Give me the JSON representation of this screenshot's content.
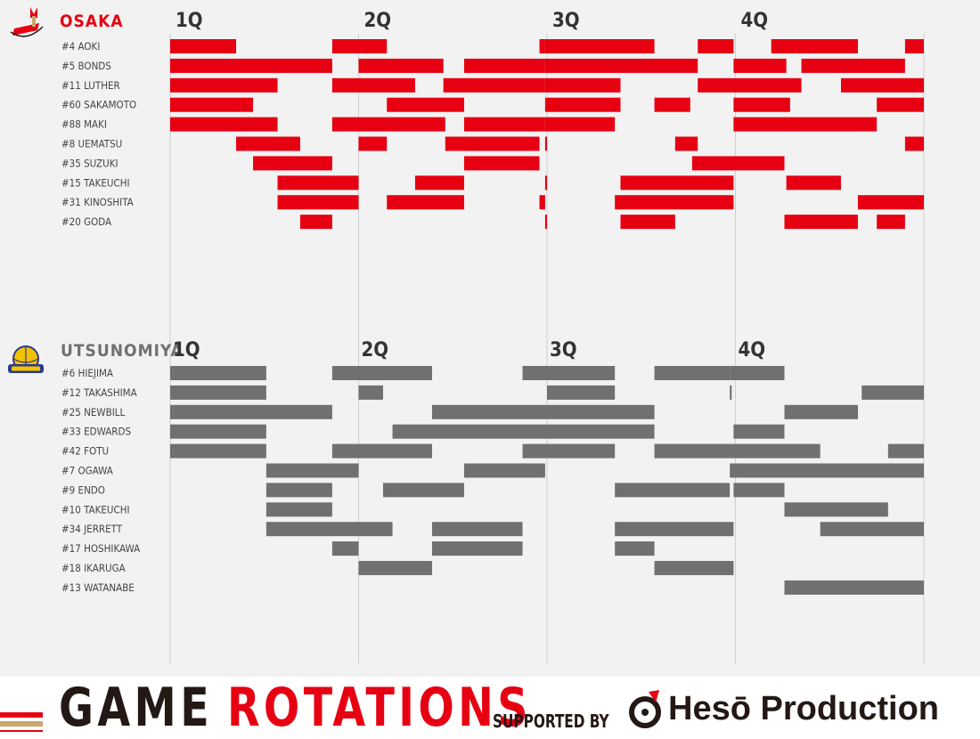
{
  "chart_data": {
    "type": "rotation_timeline",
    "title": "GAME ROTATIONS",
    "periods": [
      "1Q",
      "2Q",
      "3Q",
      "4Q"
    ],
    "game_length_min": 40,
    "x_unit": "game minutes",
    "teams": [
      {
        "name": "OSAKA",
        "color": "#e60012",
        "name_color": "#e60012",
        "logo_icon": "osaka-evessa-logo-icon",
        "players": [
          {
            "label": "#4 AOKI",
            "stints": [
              [
                0,
                3.5
              ],
              [
                8.6,
                11.5
              ],
              [
                19.6,
                19.9
              ],
              [
                19.9,
                25.7
              ],
              [
                28,
                29.9
              ],
              [
                31.9,
                36.5
              ],
              [
                39,
                40
              ]
            ]
          },
          {
            "label": "#5 BONDS",
            "stints": [
              [
                0,
                8.6
              ],
              [
                10,
                14.5
              ],
              [
                15.6,
                19.9
              ],
              [
                19.9,
                28
              ],
              [
                29.9,
                32.7
              ],
              [
                33.5,
                39
              ]
            ]
          },
          {
            "label": "#11 LUTHER",
            "stints": [
              [
                0,
                5.7
              ],
              [
                8.6,
                13
              ],
              [
                14.5,
                19.9
              ],
              [
                19.9,
                23.9
              ],
              [
                28,
                33.5
              ],
              [
                35.6,
                40
              ]
            ]
          },
          {
            "label": "#60 SAKAMOTO",
            "stints": [
              [
                0,
                4.4
              ],
              [
                11.5,
                15.6
              ],
              [
                19.9,
                23.9
              ],
              [
                25.7,
                27.6
              ],
              [
                29.9,
                32.9
              ],
              [
                37.5,
                40
              ]
            ]
          },
          {
            "label": "#88 MAKI",
            "stints": [
              [
                0,
                5.7
              ],
              [
                8.6,
                14.6
              ],
              [
                15.6,
                19.9
              ],
              [
                19.9,
                23.6
              ],
              [
                29.9,
                37.5
              ]
            ]
          },
          {
            "label": "#8 UEMATSU",
            "stints": [
              [
                3.5,
                6.9
              ],
              [
                10,
                11.5
              ],
              [
                14.6,
                19.6
              ],
              [
                19.9,
                20
              ],
              [
                26.8,
                28
              ],
              [
                39,
                40
              ]
            ]
          },
          {
            "label": "#35 SUZUKI",
            "stints": [
              [
                4.4,
                8.6
              ],
              [
                15.6,
                19.6
              ],
              [
                27.7,
                32.6
              ]
            ]
          },
          {
            "label": "#15 TAKEUCHI",
            "stints": [
              [
                5.7,
                10
              ],
              [
                13,
                15.6
              ],
              [
                19.9,
                20
              ],
              [
                23.9,
                29.9
              ],
              [
                32.7,
                35.6
              ]
            ]
          },
          {
            "label": "#31 KINOSHITA",
            "stints": [
              [
                5.7,
                10
              ],
              [
                11.5,
                15.6
              ],
              [
                19.6,
                19.9
              ],
              [
                23.6,
                29.9
              ],
              [
                36.5,
                40
              ]
            ]
          },
          {
            "label": "#20 GODA",
            "stints": [
              [
                6.9,
                8.6
              ],
              [
                19.9,
                20
              ],
              [
                23.9,
                26.8
              ],
              [
                32.6,
                36.5
              ],
              [
                37.5,
                39
              ]
            ]
          }
        ]
      },
      {
        "name": "UTSUNOMIYA",
        "color": "#707070",
        "name_color": "#707070",
        "logo_icon": "utsunomiya-brex-logo-icon",
        "players": [
          {
            "label": "#6 HIEJIMA",
            "stints": [
              [
                0,
                5.1
              ],
              [
                8.6,
                13.9
              ],
              [
                18.7,
                23.6
              ],
              [
                25.7,
                29.7
              ],
              [
                29.7,
                32.6
              ]
            ]
          },
          {
            "label": "#12 TAKASHIMA",
            "stints": [
              [
                0,
                5.1
              ],
              [
                10,
                11.3
              ],
              [
                20,
                23.6
              ],
              [
                29.7,
                29.8
              ],
              [
                36.7,
                40
              ]
            ]
          },
          {
            "label": "#25 NEWBILL",
            "stints": [
              [
                0,
                8.6
              ],
              [
                13.9,
                25.7
              ],
              [
                32.6,
                36.5
              ]
            ]
          },
          {
            "label": "#33 EDWARDS",
            "stints": [
              [
                0,
                5.1
              ],
              [
                11.8,
                25.7
              ],
              [
                29.9,
                32.6
              ]
            ]
          },
          {
            "label": "#42 FOTU",
            "stints": [
              [
                0,
                5.1
              ],
              [
                8.6,
                13.9
              ],
              [
                18.7,
                23.6
              ],
              [
                25.7,
                34.5
              ],
              [
                38.1,
                40
              ]
            ]
          },
          {
            "label": "#7 OGAWA",
            "stints": [
              [
                5.1,
                10
              ],
              [
                15.6,
                19.9
              ],
              [
                29.7,
                40
              ]
            ]
          },
          {
            "label": "#9 ENDO",
            "stints": [
              [
                5.1,
                8.6
              ],
              [
                11.3,
                15.6
              ],
              [
                23.6,
                29.7
              ],
              [
                29.9,
                32.6
              ]
            ]
          },
          {
            "label": "#10 TAKEUCHI",
            "stints": [
              [
                5.1,
                8.6
              ],
              [
                32.6,
                38.1
              ]
            ]
          },
          {
            "label": "#34 JERRETT",
            "stints": [
              [
                5.1,
                11.8
              ],
              [
                13.9,
                18.7
              ],
              [
                23.6,
                29.9
              ],
              [
                34.5,
                40
              ]
            ]
          },
          {
            "label": "#17 HOSHIKAWA",
            "stints": [
              [
                8.6,
                10
              ],
              [
                13.9,
                18.7
              ],
              [
                23.6,
                25.7
              ]
            ]
          },
          {
            "label": "#18 IKARUGA",
            "stints": [
              [
                10,
                13.9
              ],
              [
                25.7,
                29.9
              ]
            ]
          },
          {
            "label": "#13 WATANABE",
            "stints": [
              [
                32.6,
                40
              ]
            ]
          }
        ]
      }
    ]
  },
  "footer": {
    "title_word1": "GAME",
    "title_word2": "ROTATIONS",
    "supported_by": "SUPPORTED BY",
    "sponsor": "Hesō Production",
    "sponsor_icon": "heso-production-logo-icon"
  }
}
